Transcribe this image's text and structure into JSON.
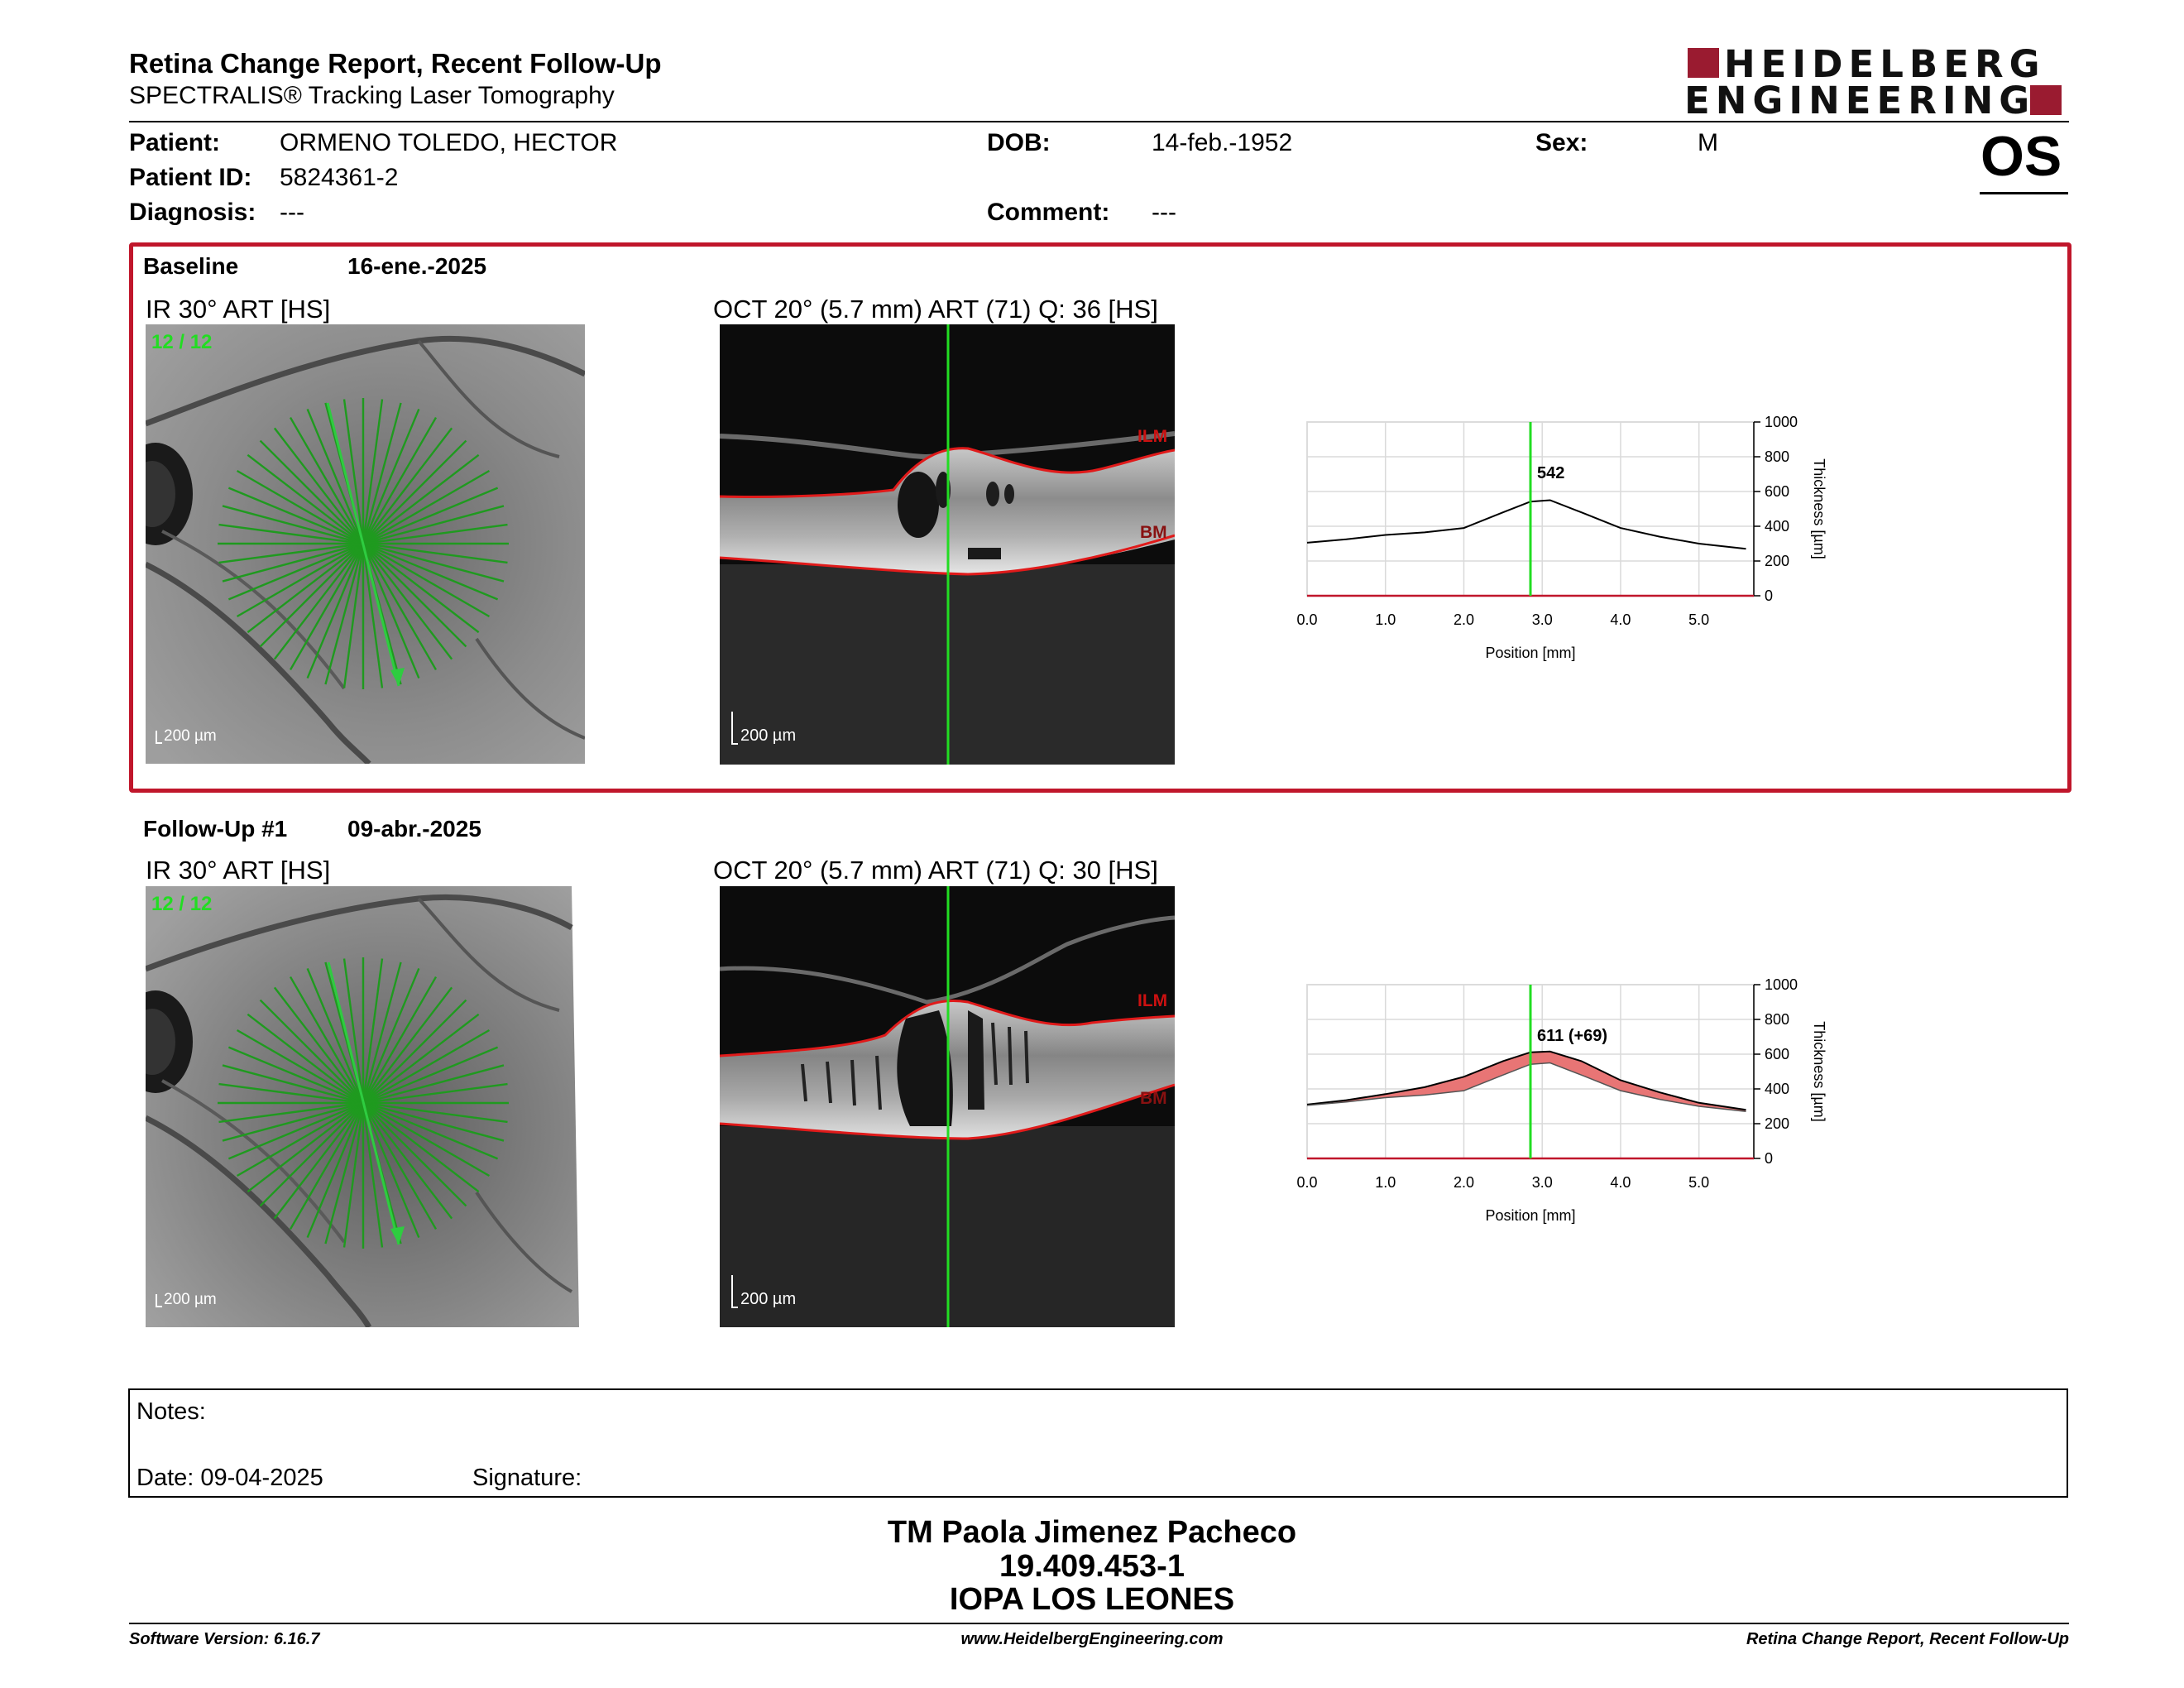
{
  "header": {
    "title": "Retina Change Report, Recent Follow-Up",
    "subtitle": "SPECTRALIS® Tracking Laser Tomography",
    "brand_line1": "HEIDELBERG",
    "brand_line2": "ENGINEERING",
    "eye": "OS",
    "brand_color": "#9a1b30"
  },
  "patient": {
    "patient_label": "Patient:",
    "patient_value": "ORMENO TOLEDO, HECTOR",
    "id_label": "Patient ID:",
    "id_value": "5824361-2",
    "diagnosis_label": "Diagnosis:",
    "diagnosis_value": "---",
    "dob_label": "DOB:",
    "dob_value": "14-feb.-1952",
    "comment_label": "Comment:",
    "comment_value": "---",
    "sex_label": "Sex:",
    "sex_value": "M"
  },
  "baseline": {
    "label": "Baseline",
    "date": "16-ene.-2025",
    "ir_label": "IR 30° ART [HS]",
    "ir_counter": "12 / 12",
    "ir_scale": "200 µm",
    "oct_label": "OCT 20° (5.7 mm) ART (71) Q: 36 [HS]",
    "oct_scale": "200 µm",
    "ilm": "ILM",
    "bm": "BM",
    "highlight_color": "#c0162b"
  },
  "followup": {
    "label": "Follow-Up #1",
    "date": "09-abr.-2025",
    "ir_label": "IR 30° ART [HS]",
    "ir_counter": "12 / 12",
    "ir_scale": "200 µm",
    "oct_label": "OCT 20° (5.7 mm) ART (71) Q: 30 [HS]",
    "oct_scale": "200 µm",
    "ilm": "ILM",
    "bm": "BM"
  },
  "chart_data": [
    {
      "type": "line",
      "xlabel": "Position [mm]",
      "ylabel": "Thickness [µm]",
      "xlim": [
        0,
        5.7
      ],
      "ylim": [
        0,
        1000
      ],
      "xticks": [
        "0.0",
        "1.0",
        "2.0",
        "3.0",
        "4.0",
        "5.0"
      ],
      "yticks": [
        "0",
        "200",
        "400",
        "600",
        "800",
        "1000"
      ],
      "grid": true,
      "marker_x": 2.85,
      "annotation": "542",
      "x": [
        0,
        0.5,
        1.0,
        1.5,
        2.0,
        2.5,
        2.85,
        3.1,
        3.5,
        4.0,
        4.5,
        5.0,
        5.6
      ],
      "values": [
        305,
        325,
        350,
        365,
        390,
        480,
        542,
        550,
        480,
        390,
        340,
        300,
        270
      ]
    },
    {
      "type": "area",
      "xlabel": "Position [mm]",
      "ylabel": "Thickness [µm]",
      "xlim": [
        0,
        5.7
      ],
      "ylim": [
        0,
        1000
      ],
      "xticks": [
        "0.0",
        "1.0",
        "2.0",
        "3.0",
        "4.0",
        "5.0"
      ],
      "yticks": [
        "0",
        "200",
        "400",
        "600",
        "800",
        "1000"
      ],
      "grid": true,
      "marker_x": 2.85,
      "annotation": "611 (+69)",
      "x": [
        0,
        0.5,
        1.0,
        1.5,
        2.0,
        2.5,
        2.85,
        3.1,
        3.5,
        4.0,
        4.5,
        5.0,
        5.6
      ],
      "series": [
        {
          "values": [
            310,
            335,
            370,
            410,
            470,
            560,
            611,
            615,
            560,
            450,
            380,
            320,
            280
          ]
        },
        {
          "values": [
            305,
            325,
            350,
            365,
            390,
            480,
            542,
            550,
            480,
            390,
            340,
            300,
            270
          ]
        }
      ],
      "fill_color": "#e87575"
    }
  ],
  "notes": {
    "notes_label": "Notes:",
    "date_label": "Date: 09-04-2025",
    "signature_label": "Signature:"
  },
  "signature_block": {
    "name": "TM Paola Jimenez Pacheco",
    "rut": "19.409.453-1",
    "institution": "IOPA LOS LEONES"
  },
  "footer": {
    "software": "Software Version: 6.16.7",
    "website": "www.HeidelbergEngineering.com",
    "report_name": "Retina Change Report, Recent Follow-Up"
  }
}
